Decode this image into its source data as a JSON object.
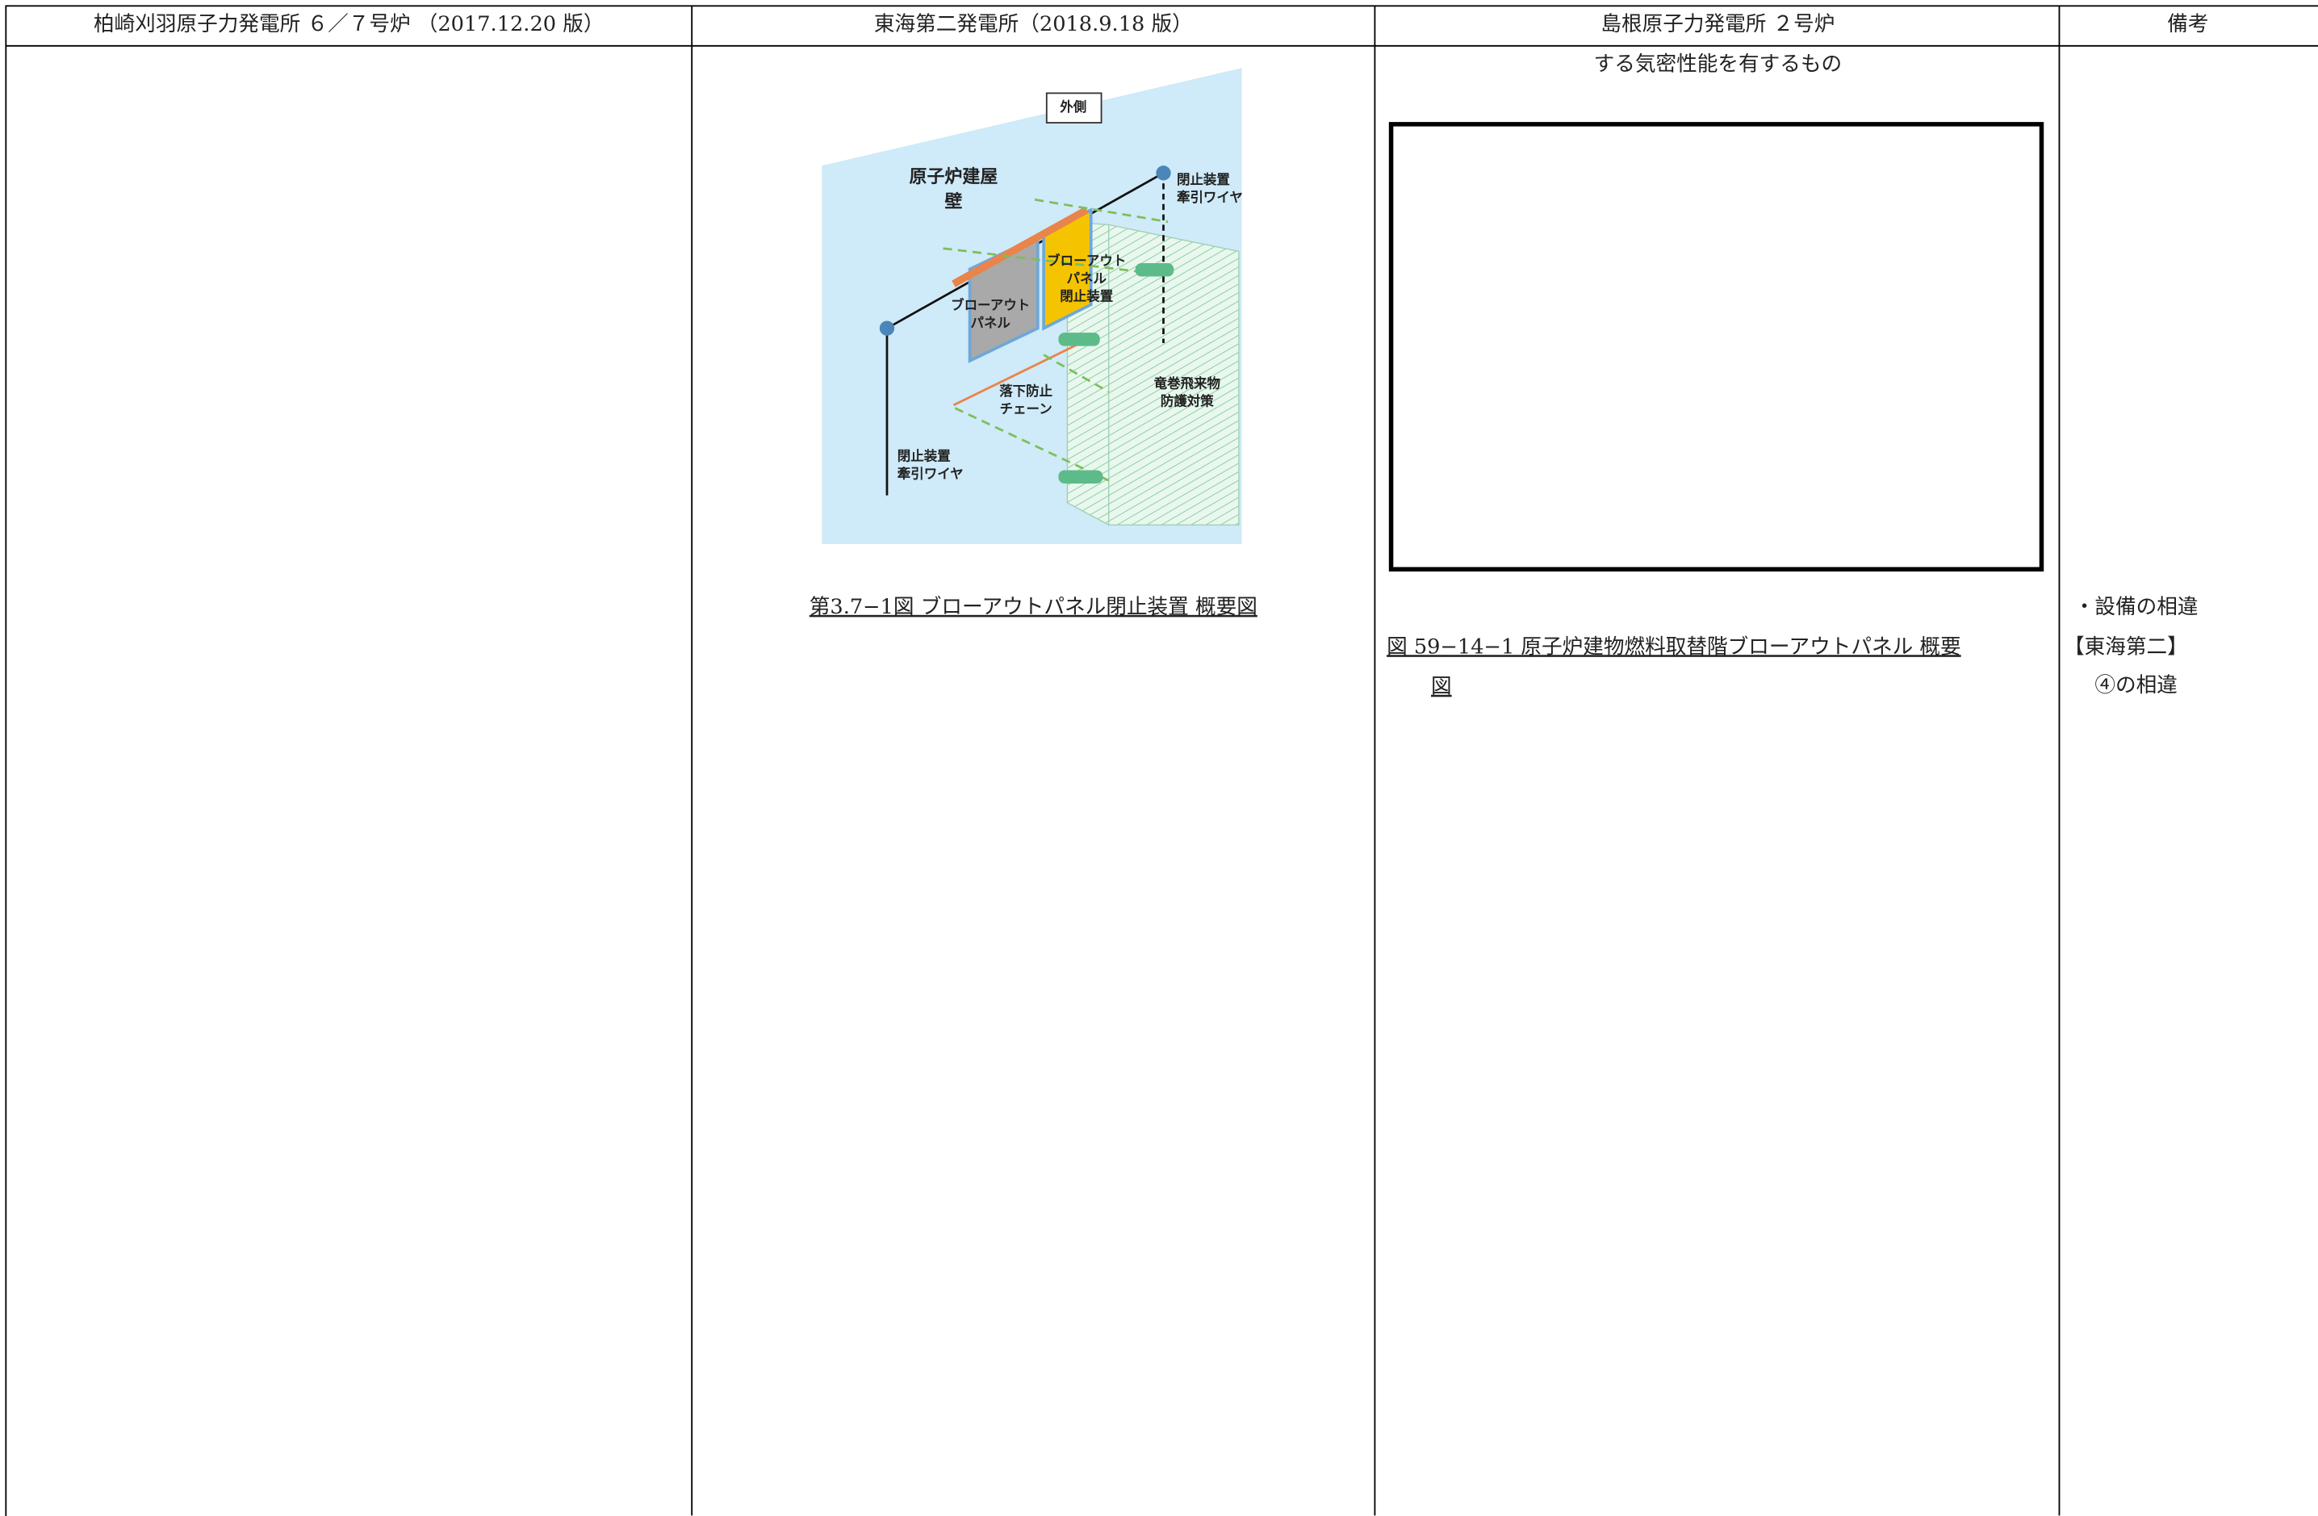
{
  "header": [
    "柏崎刈羽原子力発電所 ６／７号炉 （2017.12.20 版）",
    "東海第二発電所（2018.9.18 版）",
    "島根原子力発電所 ２号炉",
    "備考"
  ],
  "tokai": {
    "figure_labels": {
      "outside": "外側",
      "wall": [
        "原子炉建屋",
        "壁"
      ],
      "wire_right": [
        "閉止装置",
        "牽引ワイヤ"
      ],
      "closer": [
        "ブローアウト",
        "パネル",
        "閉止装置"
      ],
      "panel": [
        "ブローアウト",
        "パネル"
      ],
      "chain": [
        "落下防止",
        "チェーン"
      ],
      "tornado": [
        "竜巻飛来物",
        "防護対策"
      ],
      "wire_left": [
        "閉止装置",
        "牽引ワイヤ"
      ]
    },
    "caption": "第3.7−1図 ブローアウトパネル閉止装置 概要図"
  },
  "shimane": {
    "text": "する気密性能を有するもの",
    "caption": [
      "図 59−14−1 原子炉建物燃料取替階ブローアウトパネル 概要",
      "図"
    ]
  },
  "remarks": [
    "・設備の相違",
    "【東海第二】",
    "④の相違"
  ]
}
